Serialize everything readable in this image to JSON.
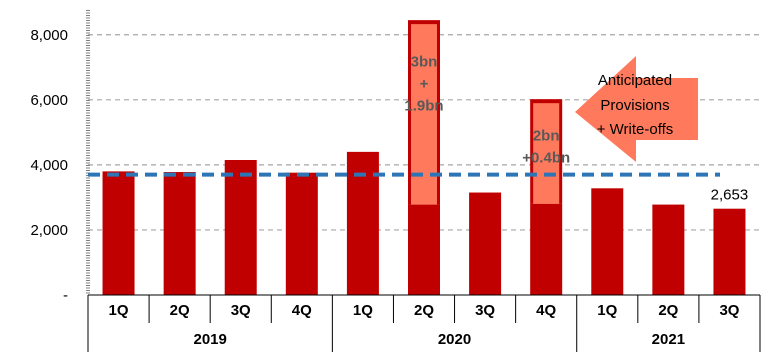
{
  "chart_data": {
    "type": "bar",
    "categories": [
      "1Q",
      "2Q",
      "3Q",
      "4Q",
      "1Q",
      "2Q",
      "3Q",
      "4Q",
      "1Q",
      "2Q",
      "3Q"
    ],
    "groups": [
      {
        "label": "2019",
        "count": 4
      },
      {
        "label": "2020",
        "count": 4
      },
      {
        "label": "2021",
        "count": 3
      }
    ],
    "values": [
      3800,
      3780,
      4150,
      3760,
      4400,
      2780,
      3150,
      2800,
      3280,
      2780,
      2653
    ],
    "provision_overlay": [
      {
        "index": 5,
        "base": 2780,
        "top": 8450,
        "label_lines": [
          "3bn",
          "+",
          "1.9bn"
        ]
      },
      {
        "index": 7,
        "base": 2800,
        "top": 6020,
        "label_lines": [
          "2bn",
          "+0.4bn"
        ]
      }
    ],
    "data_labels": [
      {
        "index": 10,
        "text": "2,653"
      }
    ],
    "reference_line": 3700,
    "ylim": [
      0,
      8700
    ],
    "yticks": [
      0,
      2000,
      4000,
      6000,
      8000
    ],
    "ytick_labels": [
      "-",
      "2,000",
      "4,000",
      "6,000",
      "8,000"
    ],
    "grid": true,
    "colors": {
      "bar": "#c00000",
      "overlay": "#ff7a5c",
      "reference_line": "#2e75b6",
      "arrow": "#ff7a5c",
      "grid": "#a6a6a6"
    }
  },
  "annotation": {
    "lines": [
      "Anticipated",
      "Provisions",
      "+ Write-offs"
    ]
  }
}
